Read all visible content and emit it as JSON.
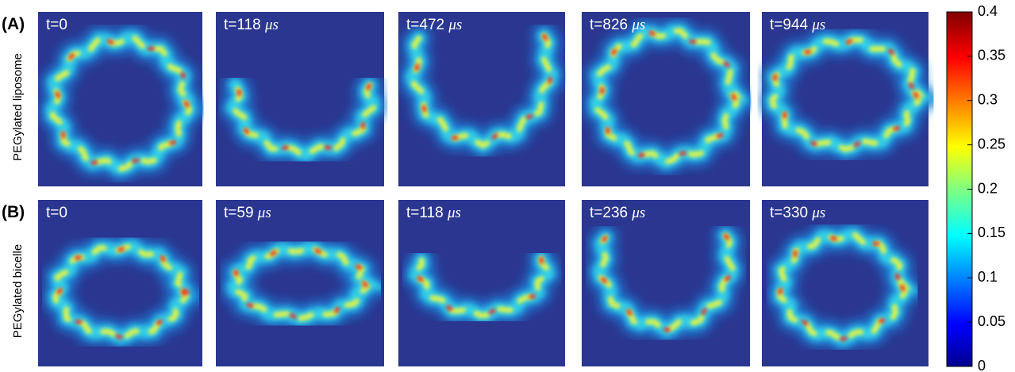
{
  "rows": [
    {
      "label": "(A)",
      "row_label": "PEGylated liposome",
      "panels": [
        {
          "time": "t=0"
        },
        {
          "time": "t=118",
          "unit": "μs"
        },
        {
          "time": "t=472",
          "unit": "μs"
        },
        {
          "time": "t=826",
          "unit": "μs"
        },
        {
          "time": "t=944",
          "unit": "μs"
        }
      ]
    },
    {
      "label": "(B)",
      "row_label": "PEGylated bicelle",
      "panels": [
        {
          "time": "t=0"
        },
        {
          "time": "t=59",
          "unit": "μs"
        },
        {
          "time": "t=118",
          "unit": "μs"
        },
        {
          "time": "t=236",
          "unit": "μs"
        },
        {
          "time": "t=330",
          "unit": "μs"
        }
      ]
    }
  ],
  "colorbar": {
    "lim": [
      0,
      0.4
    ],
    "ticks": [
      0,
      0.05,
      0.1,
      0.15,
      0.2,
      0.25,
      0.3,
      0.35,
      0.4
    ]
  }
}
